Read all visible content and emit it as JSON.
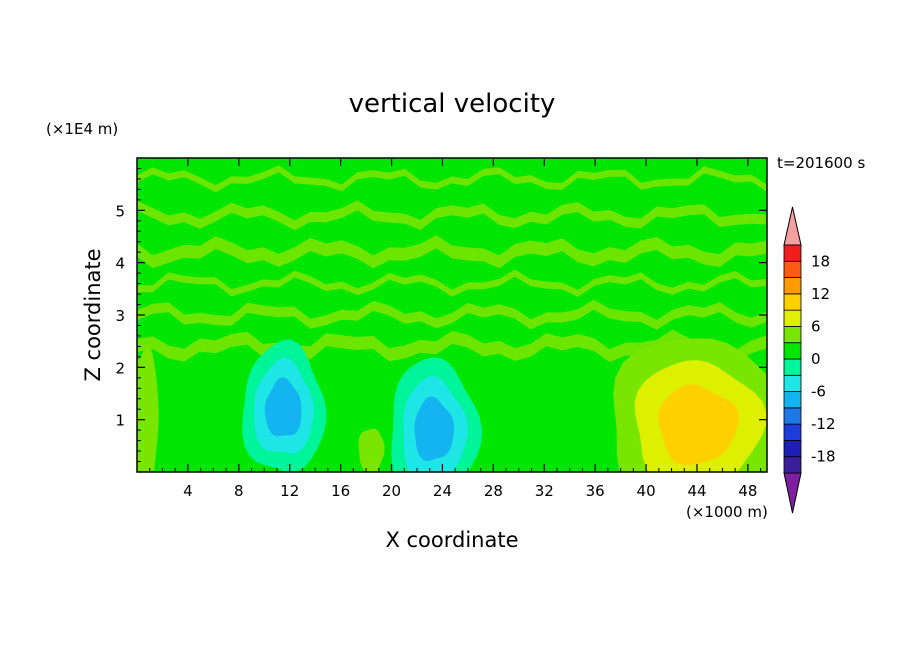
{
  "chart_data": {
    "type": "heatmap",
    "title": "vertical velocity",
    "xlabel": "X coordinate",
    "ylabel": "Z coordinate",
    "x_unit": "(×1000 m)",
    "y_unit": "(×1E4 m)",
    "time_label": "t=201600 s",
    "xlim": [
      0,
      49.5
    ],
    "ylim": [
      0,
      6
    ],
    "x_ticks": [
      "4",
      "8",
      "12",
      "16",
      "20",
      "24",
      "28",
      "32",
      "36",
      "40",
      "44",
      "48"
    ],
    "y_ticks": [
      "1",
      "2",
      "3",
      "4",
      "5"
    ],
    "colorbar": {
      "levels": [
        -21,
        -18,
        -15,
        -12,
        -9,
        -6,
        -3,
        0,
        3,
        6,
        9,
        12,
        15,
        18,
        21
      ],
      "tick_labels": [
        "-18",
        "-12",
        "-6",
        "0",
        "6",
        "12",
        "18"
      ],
      "extend": "both",
      "colors": [
        "#7e1ea0",
        "#3c1e9c",
        "#1e1eb4",
        "#1e3cdc",
        "#1e78e6",
        "#14b4f0",
        "#1ee6e6",
        "#00f59a",
        "#00e600",
        "#78e600",
        "#dcf000",
        "#ffd000",
        "#ff9a00",
        "#ff5a14",
        "#f01e1e",
        "#f5a0a0"
      ]
    },
    "background_value": 1.5,
    "features": [
      {
        "kind": "downdraft",
        "x": 11.5,
        "z": 1.2,
        "rx": 6.5,
        "rz": 1.25,
        "values": [
          -1.5,
          -4.5,
          -6.5
        ]
      },
      {
        "kind": "downdraft",
        "x": 23.3,
        "z": 0.8,
        "rx": 7.0,
        "rz": 1.35,
        "values": [
          -1.5,
          -4.5,
          -6.5
        ]
      },
      {
        "kind": "updraft",
        "x": 44.0,
        "z": 0.9,
        "rx": 14.0,
        "rz": 1.7,
        "values": [
          4.5,
          7.5,
          9.5
        ]
      },
      {
        "kind": "updraft",
        "x": 18.4,
        "z": 0.4,
        "rx": 2.0,
        "rz": 0.45,
        "values": [
          4.5
        ]
      },
      {
        "kind": "updraft",
        "x": 0.6,
        "z": 1.0,
        "rx": 2.2,
        "rz": 1.4,
        "values": [
          4.5
        ]
      }
    ]
  }
}
